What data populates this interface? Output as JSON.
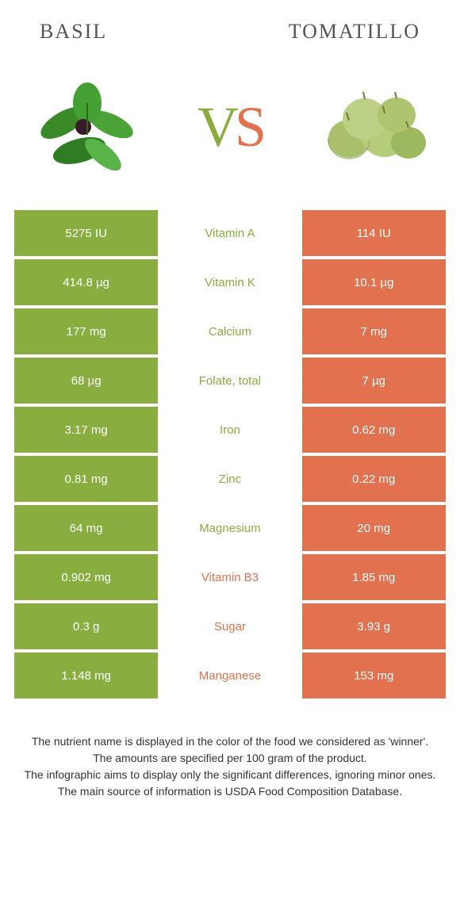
{
  "header": {
    "left": "Basil",
    "right": "Tomatillo"
  },
  "vs": {
    "v": "V",
    "s": "S"
  },
  "colors": {
    "left": "#8aad3f",
    "right": "#e2714f",
    "mid_left_text": "#8aad3f",
    "mid_right_text": "#e2714f"
  },
  "rows": [
    {
      "left": "5275 IU",
      "mid": "Vitamin A",
      "right": "114 IU",
      "winner": "left"
    },
    {
      "left": "414.8 µg",
      "mid": "Vitamin K",
      "right": "10.1 µg",
      "winner": "left"
    },
    {
      "left": "177 mg",
      "mid": "Calcium",
      "right": "7 mg",
      "winner": "left"
    },
    {
      "left": "68 µg",
      "mid": "Folate, total",
      "right": "7 µg",
      "winner": "left"
    },
    {
      "left": "3.17 mg",
      "mid": "Iron",
      "right": "0.62 mg",
      "winner": "left"
    },
    {
      "left": "0.81 mg",
      "mid": "Zinc",
      "right": "0.22 mg",
      "winner": "left"
    },
    {
      "left": "64 mg",
      "mid": "Magnesium",
      "right": "20 mg",
      "winner": "left"
    },
    {
      "left": "0.902 mg",
      "mid": "Vitamin B3",
      "right": "1.85 mg",
      "winner": "right"
    },
    {
      "left": "0.3 g",
      "mid": "Sugar",
      "right": "3.93 g",
      "winner": "right"
    },
    {
      "left": "1.148 mg",
      "mid": "Manganese",
      "right": "153 mg",
      "winner": "right"
    }
  ],
  "footer": {
    "line1": "The nutrient name is displayed in the color of the food we considered as 'winner'.",
    "line2": "The amounts are specified per 100 gram of the product.",
    "line3": "The infographic aims to display only the significant differences, ignoring minor ones.",
    "line4": "The main source of information is USDA Food Composition Database."
  }
}
